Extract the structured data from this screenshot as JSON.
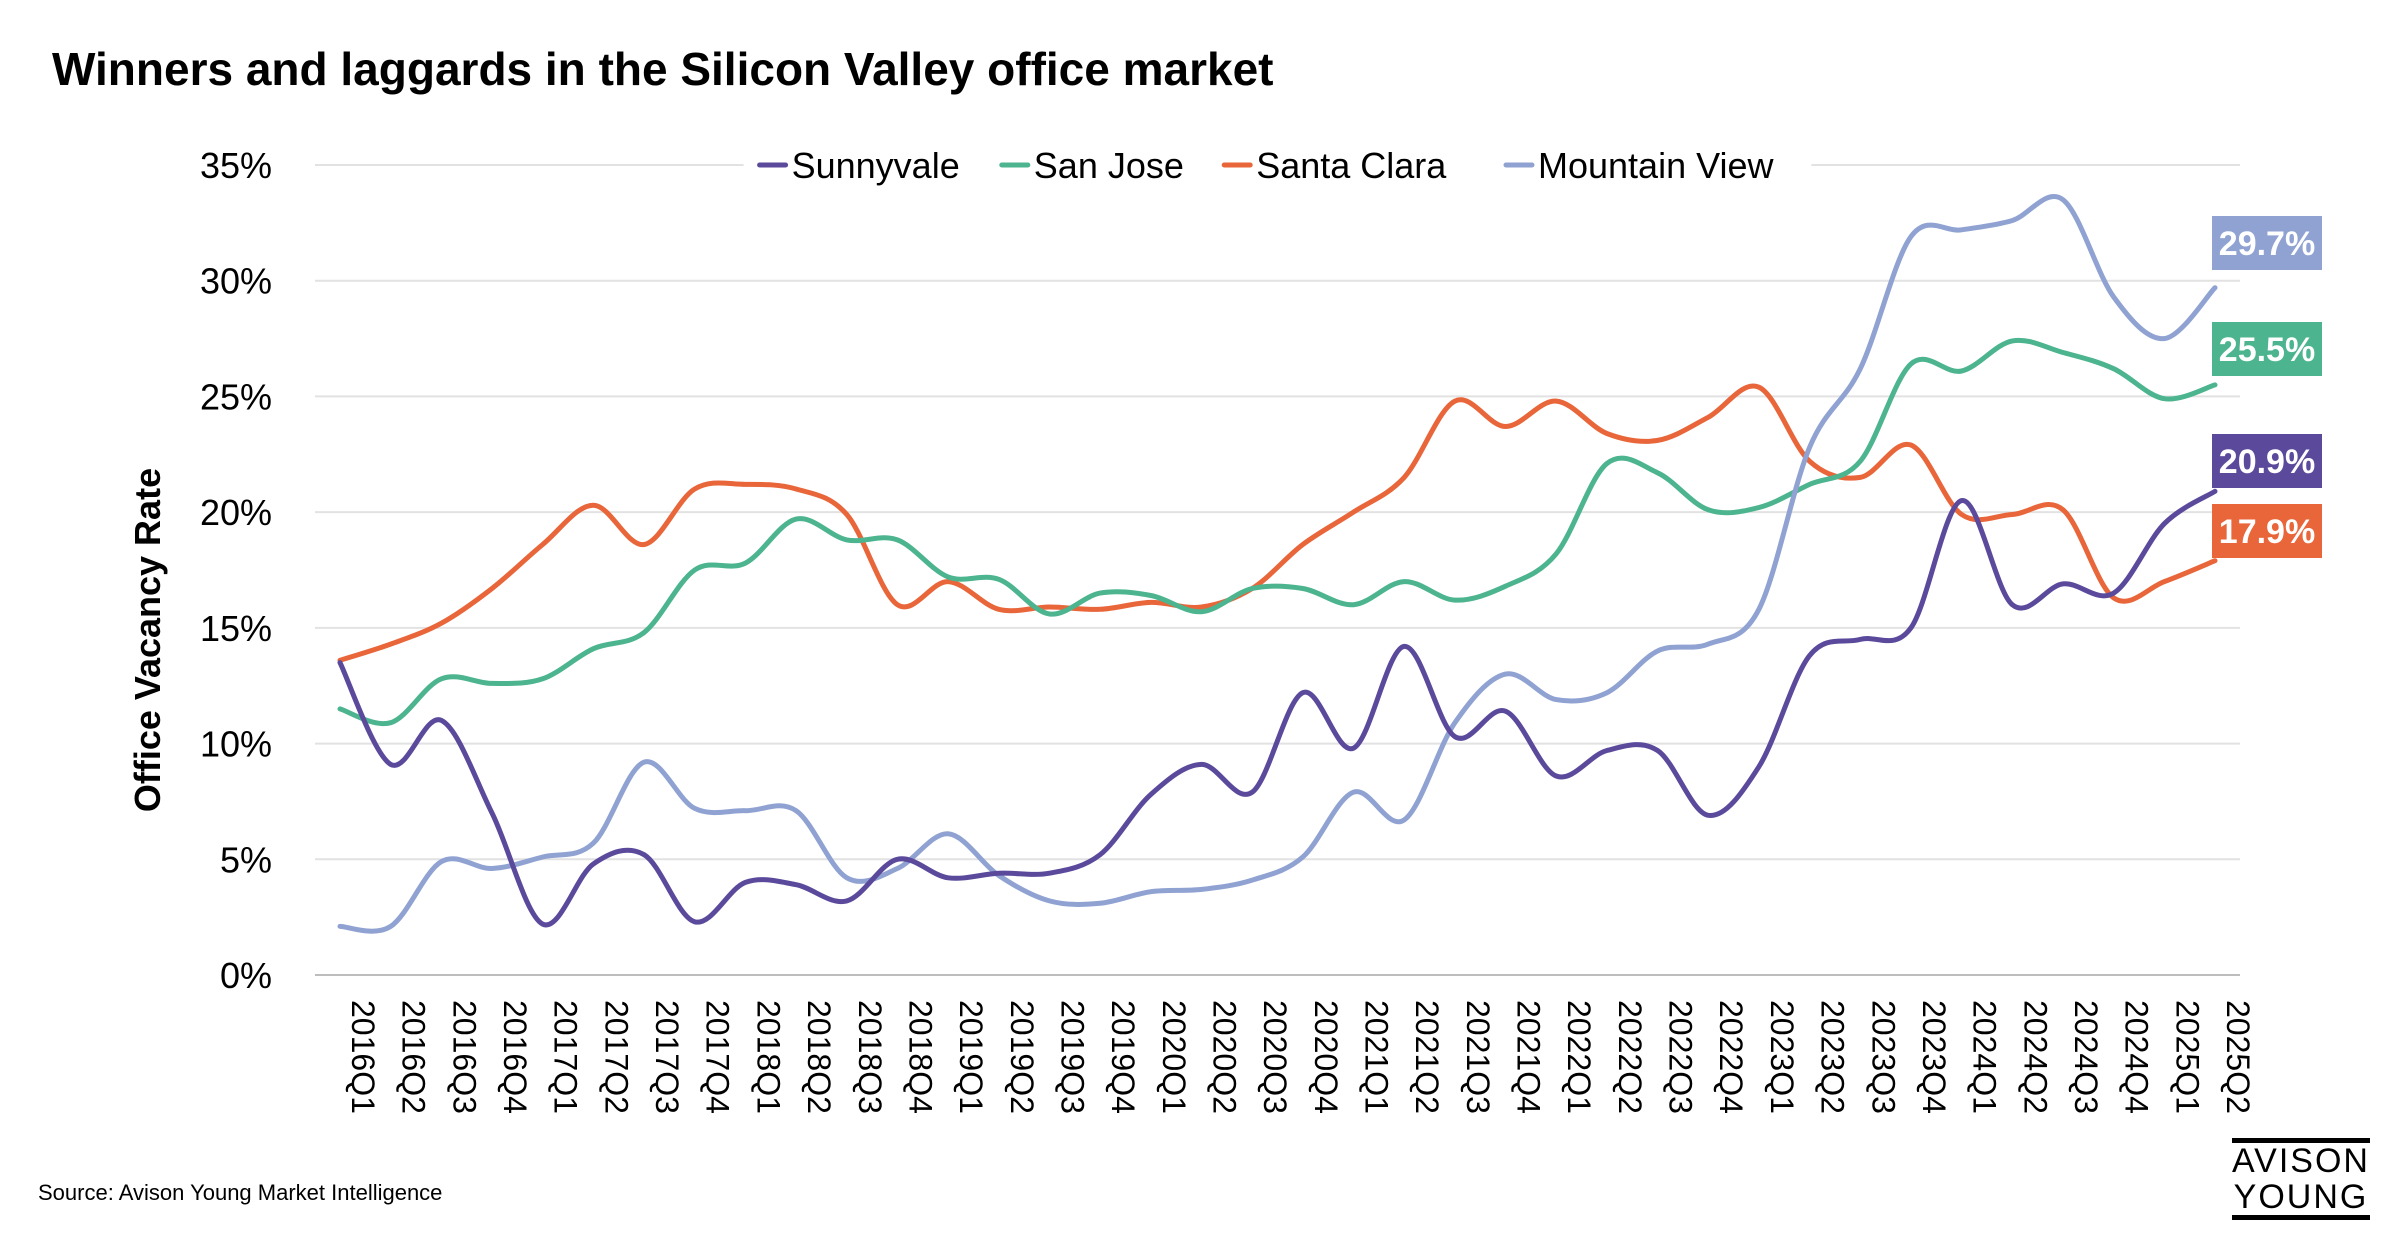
{
  "title": "Winners and laggards in the Silicon Valley office market",
  "source": "Source: Avison Young Market Intelligence",
  "logo": {
    "line1": "AVISON",
    "line2": "YOUNG"
  },
  "chart_data": {
    "type": "line",
    "title": "Winners and laggards in the Silicon Valley office market",
    "xlabel": "",
    "ylabel": "Office Vacancy Rate",
    "ylim": [
      0,
      0.35
    ],
    "yticks": [
      0,
      0.05,
      0.1,
      0.15,
      0.2,
      0.25,
      0.3,
      0.35
    ],
    "ytick_labels": [
      "0%",
      "5%",
      "10%",
      "15%",
      "20%",
      "25%",
      "30%",
      "35%"
    ],
    "grid": true,
    "legend": "top-center",
    "categories": [
      "2016Q1",
      "2016Q2",
      "2016Q3",
      "2016Q4",
      "2017Q1",
      "2017Q2",
      "2017Q3",
      "2017Q4",
      "2018Q1",
      "2018Q2",
      "2018Q3",
      "2018Q4",
      "2019Q1",
      "2019Q2",
      "2019Q3",
      "2019Q4",
      "2020Q1",
      "2020Q2",
      "2020Q3",
      "2020Q4",
      "2021Q1",
      "2021Q2",
      "2021Q3",
      "2021Q4",
      "2022Q1",
      "2022Q2",
      "2022Q3",
      "2022Q4",
      "2023Q1",
      "2023Q2",
      "2023Q3",
      "2023Q4",
      "2024Q1",
      "2024Q2",
      "2024Q3",
      "2024Q4",
      "2025Q1",
      "2025Q2"
    ],
    "series": [
      {
        "name": "Sunnyvale",
        "color": "#5b4a9b",
        "end_label": "20.9%",
        "values": [
          0.135,
          0.091,
          0.11,
          0.07,
          0.022,
          0.048,
          0.052,
          0.023,
          0.04,
          0.039,
          0.032,
          0.05,
          0.042,
          0.044,
          0.044,
          0.052,
          0.078,
          0.091,
          0.079,
          0.122,
          0.098,
          0.142,
          0.103,
          0.114,
          0.086,
          0.097,
          0.097,
          0.069,
          0.09,
          0.138,
          0.145,
          0.15,
          0.205,
          0.16,
          0.169,
          0.165,
          0.195,
          0.209
        ]
      },
      {
        "name": "San Jose",
        "color": "#4cb48e",
        "end_label": "25.5%",
        "values": [
          0.115,
          0.109,
          0.128,
          0.126,
          0.128,
          0.141,
          0.148,
          0.175,
          0.178,
          0.197,
          0.188,
          0.188,
          0.172,
          0.171,
          0.156,
          0.165,
          0.164,
          0.157,
          0.167,
          0.167,
          0.16,
          0.17,
          0.162,
          0.168,
          0.182,
          0.221,
          0.217,
          0.201,
          0.202,
          0.212,
          0.222,
          0.264,
          0.261,
          0.274,
          0.269,
          0.262,
          0.249,
          0.255
        ]
      },
      {
        "name": "Santa Clara",
        "color": "#e8663a",
        "end_label": "17.9%",
        "values": [
          0.136,
          0.143,
          0.152,
          0.167,
          0.186,
          0.203,
          0.186,
          0.21,
          0.212,
          0.21,
          0.199,
          0.16,
          0.17,
          0.158,
          0.159,
          0.158,
          0.161,
          0.159,
          0.167,
          0.186,
          0.2,
          0.215,
          0.248,
          0.237,
          0.248,
          0.234,
          0.231,
          0.241,
          0.254,
          0.222,
          0.215,
          0.229,
          0.199,
          0.199,
          0.201,
          0.163,
          0.17,
          0.179
        ]
      },
      {
        "name": "Mountain View",
        "color": "#8fa2d2",
        "end_label": "29.7%",
        "values": [
          0.021,
          0.021,
          0.049,
          0.046,
          0.051,
          0.057,
          0.092,
          0.072,
          0.071,
          0.071,
          0.042,
          0.046,
          0.061,
          0.043,
          0.032,
          0.031,
          0.036,
          0.037,
          0.041,
          0.051,
          0.079,
          0.067,
          0.109,
          0.13,
          0.119,
          0.122,
          0.14,
          0.143,
          0.158,
          0.228,
          0.262,
          0.319,
          0.322,
          0.326,
          0.335,
          0.293,
          0.275,
          0.297
        ]
      }
    ]
  }
}
